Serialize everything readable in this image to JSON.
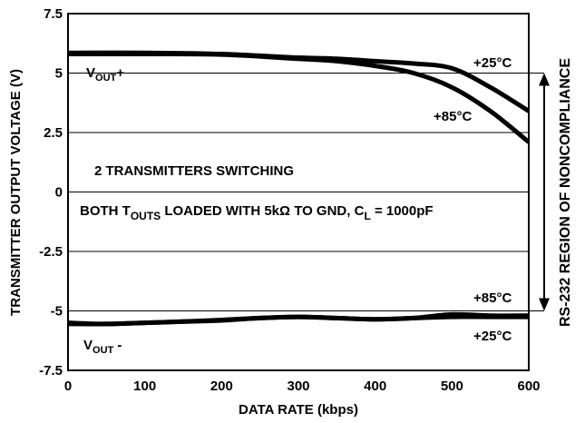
{
  "chart_data": {
    "type": "line",
    "xlabel": "DATA RATE (kbps)",
    "ylabel": "TRANSMITTER OUTPUT VOLTAGE (V)",
    "xlim": [
      0,
      600
    ],
    "ylim": [
      -7.5,
      7.5
    ],
    "x_ticks": [
      "0",
      "100",
      "200",
      "300",
      "400",
      "500",
      "600"
    ],
    "y_ticks": [
      "7.5",
      "5",
      "2.5",
      "0",
      "-2.5",
      "-5",
      "-7.5"
    ],
    "grid": true,
    "series": [
      {
        "name": "+25°C",
        "group": "VOUT+",
        "x": [
          0,
          100,
          200,
          300,
          350,
          400,
          450,
          500,
          550,
          600
        ],
        "y": [
          5.85,
          5.85,
          5.8,
          5.65,
          5.6,
          5.5,
          5.4,
          5.2,
          4.4,
          3.4
        ]
      },
      {
        "name": "+85°C",
        "group": "VOUT+",
        "x": [
          0,
          100,
          200,
          300,
          350,
          400,
          450,
          500,
          550,
          600
        ],
        "y": [
          5.8,
          5.8,
          5.78,
          5.6,
          5.5,
          5.3,
          5.0,
          4.4,
          3.4,
          2.1
        ]
      },
      {
        "name": "+85°C",
        "group": "VOUT-",
        "x": [
          0,
          50,
          100,
          150,
          200,
          250,
          300,
          350,
          400,
          450,
          500,
          550,
          600
        ],
        "y": [
          -5.55,
          -5.55,
          -5.5,
          -5.45,
          -5.4,
          -5.3,
          -5.25,
          -5.3,
          -5.35,
          -5.3,
          -5.15,
          -5.2,
          -5.2
        ]
      },
      {
        "name": "+25°C",
        "group": "VOUT-",
        "x": [
          0,
          50,
          100,
          150,
          200,
          250,
          300,
          350,
          400,
          450,
          500,
          550,
          600
        ],
        "y": [
          -5.5,
          -5.55,
          -5.5,
          -5.45,
          -5.38,
          -5.3,
          -5.25,
          -5.3,
          -5.35,
          -5.3,
          -5.25,
          -5.25,
          -5.25
        ]
      }
    ],
    "annotations": {
      "vout_plus": "VOUT+",
      "vout_minus": "VOUT -",
      "temp_25_top": "+25°C",
      "temp_85_top": "+85°C",
      "temp_85_bottom": "+85°C",
      "temp_25_bottom": "+25°C",
      "switching": "2 TRANSMITTERS SWITCHING",
      "loaded": "BOTH TOUTS LOADED WITH 5kΩ TO GND, CL = 1000pF",
      "noncompliance": "RS-232 REGION OF NONCOMPLIANCE"
    },
    "noncompliance_range": [
      -5,
      5
    ]
  }
}
